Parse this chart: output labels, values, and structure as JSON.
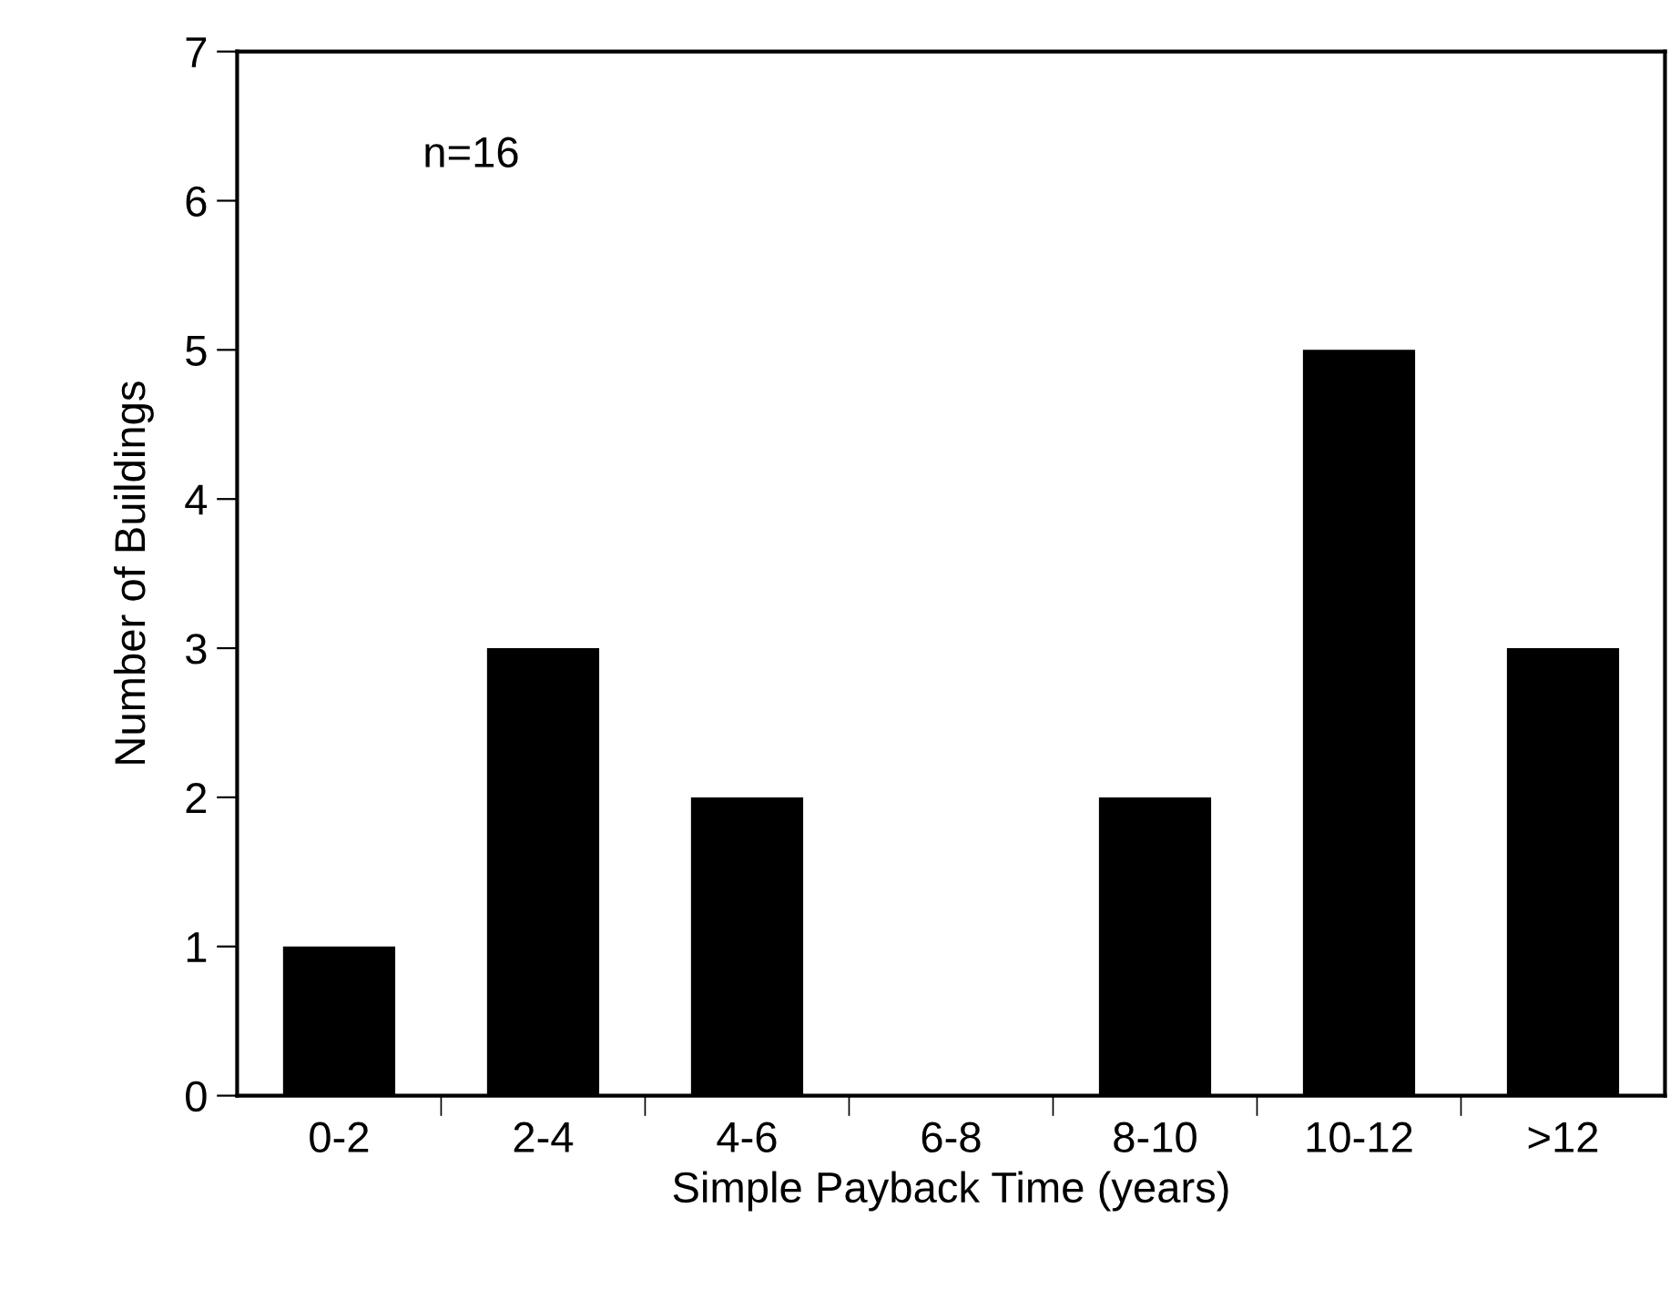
{
  "chart_data": {
    "type": "bar",
    "xlabel": "Simple Payback Time (years)",
    "ylabel": "Number of Buildings",
    "categories": [
      "0-2",
      "2-4",
      "4-6",
      "6-8",
      "8-10",
      "10-12",
      ">12"
    ],
    "values": [
      1,
      3,
      2,
      0,
      2,
      5,
      3
    ],
    "color": "#000000",
    "ylim": [
      0,
      7
    ],
    "yticks": [
      0,
      1,
      2,
      3,
      4,
      5,
      6,
      7
    ],
    "grid": false,
    "annotations": [
      "n=16"
    ]
  }
}
